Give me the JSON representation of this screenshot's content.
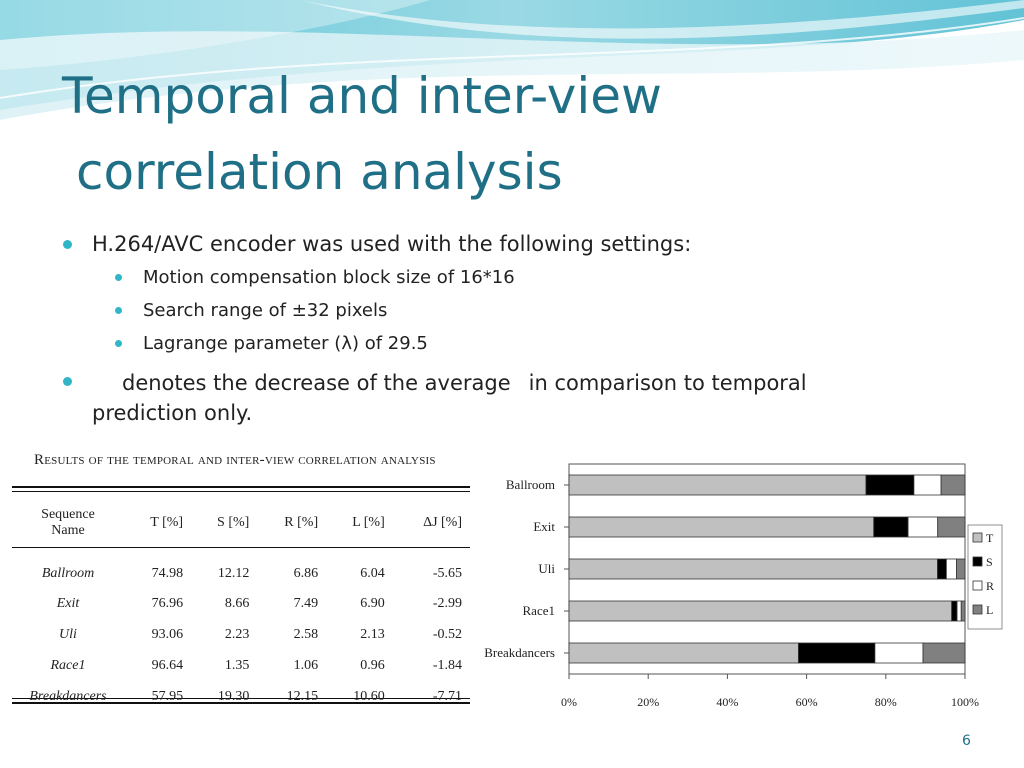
{
  "slide": {
    "title_line1": "Temporal and inter-view",
    "title_line2": "correlation analysis",
    "page_number": "6",
    "accent_color": "#30b5c9",
    "title_color": "#1f6f86"
  },
  "bullets": {
    "b1": "H.264/AVC encoder was used with the following settings:",
    "sub": [
      "Motion compensation block size of 16*16",
      "Search range of ±32 pixels",
      "Lagrange parameter (λ) of 29.5"
    ],
    "b3_part1": "denotes the decrease of the average",
    "b3_part2": "in comparison to temporal",
    "b3_line2": "prediction only."
  },
  "table": {
    "caption": "Results of the temporal and inter-view correlation analysis",
    "headers": [
      "Sequence Name",
      "T [%]",
      "S [%]",
      "R [%]",
      "L [%]",
      "ΔJ [%]"
    ],
    "rows": [
      [
        "Ballroom",
        "74.98",
        "12.12",
        "6.86",
        "6.04",
        "-5.65"
      ],
      [
        "Exit",
        "76.96",
        "8.66",
        "7.49",
        "6.90",
        "-2.99"
      ],
      [
        "Uli",
        "93.06",
        "2.23",
        "2.58",
        "2.13",
        "-0.52"
      ],
      [
        "Race1",
        "96.64",
        "1.35",
        "1.06",
        "0.96",
        "-1.84"
      ],
      [
        "Breakdancers",
        "57.95",
        "19.30",
        "12.15",
        "10.60",
        "-7.71"
      ]
    ]
  },
  "chart_data": {
    "type": "bar",
    "orientation": "horizontal",
    "stacked": true,
    "categories": [
      "Ballroom",
      "Exit",
      "Uli",
      "Race1",
      "Breakdancers"
    ],
    "series": [
      {
        "name": "T",
        "color": "#c0c0c0",
        "values": [
          74.98,
          76.96,
          93.06,
          96.64,
          57.95
        ]
      },
      {
        "name": "S",
        "color": "#000000",
        "values": [
          12.12,
          8.66,
          2.23,
          1.35,
          19.3
        ]
      },
      {
        "name": "R",
        "color": "#ffffff",
        "values": [
          6.86,
          7.49,
          2.58,
          1.06,
          12.15
        ]
      },
      {
        "name": "L",
        "color": "#808080",
        "values": [
          6.04,
          6.9,
          2.13,
          0.96,
          10.6
        ]
      }
    ],
    "x_ticks": [
      "0%",
      "20%",
      "40%",
      "60%",
      "80%",
      "100%"
    ],
    "xlim": [
      0,
      100
    ],
    "legend_position": "right",
    "grid": false
  }
}
